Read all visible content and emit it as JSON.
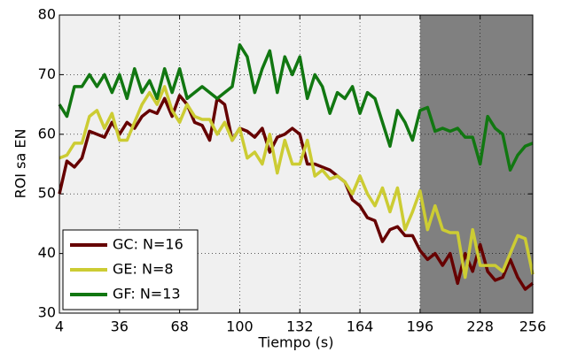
{
  "chart_data": {
    "type": "line",
    "x_label": "Tiempo (s)",
    "y_label": "ROI sa EN",
    "x": [
      4,
      8,
      12,
      16,
      20,
      24,
      28,
      32,
      36,
      40,
      44,
      48,
      52,
      56,
      60,
      64,
      68,
      72,
      76,
      80,
      84,
      88,
      92,
      96,
      100,
      104,
      108,
      112,
      116,
      120,
      124,
      128,
      132,
      136,
      140,
      144,
      148,
      152,
      156,
      160,
      164,
      168,
      172,
      176,
      180,
      184,
      188,
      192,
      196,
      200,
      204,
      208,
      212,
      216,
      220,
      224,
      228,
      232,
      236,
      240,
      244,
      248,
      252,
      256
    ],
    "series": [
      {
        "name": "GC: N=16",
        "color": "#660000",
        "values": [
          50,
          55.5,
          54.5,
          56,
          60.5,
          60,
          59.5,
          62,
          60,
          62,
          61,
          63,
          64,
          63.5,
          66,
          63,
          66.5,
          65,
          62,
          61.5,
          59,
          66,
          65,
          59,
          61,
          60.5,
          59.5,
          61,
          57,
          59.5,
          60,
          61,
          60,
          55,
          55,
          54.5,
          54,
          53,
          52,
          49,
          48,
          46,
          45.5,
          42,
          44,
          44.5,
          43,
          43,
          40.5,
          39,
          40,
          38,
          40,
          35,
          40,
          37,
          41.5,
          37,
          35.5,
          36,
          39,
          36,
          34,
          35
        ]
      },
      {
        "name": "GE: N=8",
        "color": "#cccc33",
        "values": [
          56,
          56.5,
          58.5,
          58.5,
          63,
          64,
          61,
          63.5,
          59,
          59,
          62,
          65,
          67,
          65,
          68,
          64,
          62,
          65,
          63,
          62.5,
          62.5,
          60,
          62,
          59,
          61,
          56,
          57,
          55,
          60,
          53.5,
          59,
          55,
          55,
          59,
          53,
          54,
          52.5,
          53,
          52,
          50,
          53,
          50,
          48,
          51,
          47,
          51,
          44,
          47,
          50.5,
          44,
          48,
          44,
          43.5,
          43.5,
          36,
          44,
          38,
          38,
          38,
          37,
          40,
          43,
          42.5,
          36.5
        ]
      },
      {
        "name": "GF: N=13",
        "color": "#117711",
        "values": [
          65,
          63,
          68,
          68,
          70,
          68,
          70,
          67,
          70,
          66,
          71,
          67,
          69,
          66,
          71,
          67,
          71,
          66,
          67,
          68,
          67,
          66,
          67,
          68,
          75,
          73,
          67,
          71,
          74,
          67,
          73,
          70,
          73,
          66,
          70,
          68,
          63.5,
          67,
          66,
          68,
          63.5,
          67,
          66,
          62,
          58,
          64,
          62,
          59,
          64,
          64.5,
          60.5,
          61,
          60.5,
          61,
          59.5,
          59.5,
          55,
          63,
          61,
          60,
          54,
          56.5,
          58,
          58.5
        ]
      }
    ],
    "xlim": [
      4,
      256
    ],
    "ylim": [
      30,
      80
    ],
    "xticks": [
      4,
      36,
      68,
      100,
      132,
      164,
      196,
      228,
      256
    ],
    "yticks": [
      30,
      40,
      50,
      60,
      70,
      80
    ],
    "grid": true,
    "legend": "lower left",
    "background": "#f0f0f0",
    "shaded_region": [
      196,
      256
    ],
    "shaded_color": "#808080"
  }
}
